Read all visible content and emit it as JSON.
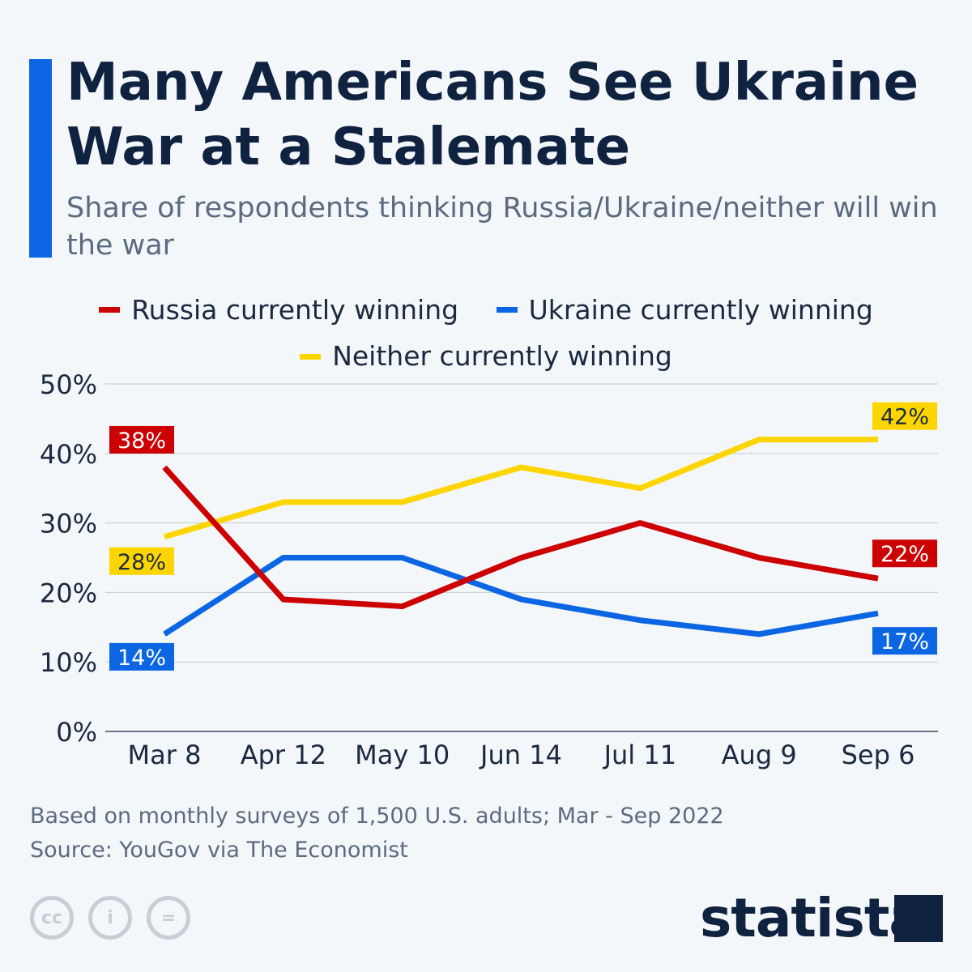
{
  "title": "Many Americans See Ukraine War at a Stalemate",
  "subtitle": "Share of respondents thinking Russia/Ukraine/neither will win the war",
  "footer": {
    "note": "Based on monthly surveys of 1,500 U.S. adults; Mar - Sep 2022",
    "source": "Source: YouGov via The Economist",
    "brand": "statista",
    "license_icons": [
      "cc-icon",
      "attribution-icon",
      "no-derivatives-icon"
    ]
  },
  "chart_data": {
    "type": "line",
    "categories": [
      "Mar 8",
      "Apr 12",
      "May 10",
      "Jun 14",
      "Jul 11",
      "Aug 9",
      "Sep 6"
    ],
    "ylim": [
      0,
      50
    ],
    "yticks": [
      "0%",
      "10%",
      "20%",
      "30%",
      "40%",
      "50%"
    ],
    "grid": true,
    "legend_placement": "top",
    "series": [
      {
        "name": "Russia currently winning",
        "color": "#cc0000",
        "values": [
          38,
          19,
          18,
          25,
          30,
          25,
          22
        ],
        "labels": {
          "first": "38%",
          "last": "22%"
        }
      },
      {
        "name": "Ukraine currently winning",
        "color": "#0c66e4",
        "values": [
          14,
          25,
          25,
          19,
          16,
          14,
          17
        ],
        "labels": {
          "first": "14%",
          "last": "17%"
        }
      },
      {
        "name": "Neither currently winning",
        "color": "#ffd500",
        "values": [
          28,
          33,
          33,
          38,
          35,
          42,
          42
        ],
        "labels": {
          "first": "28%",
          "last": "42%"
        }
      }
    ]
  }
}
